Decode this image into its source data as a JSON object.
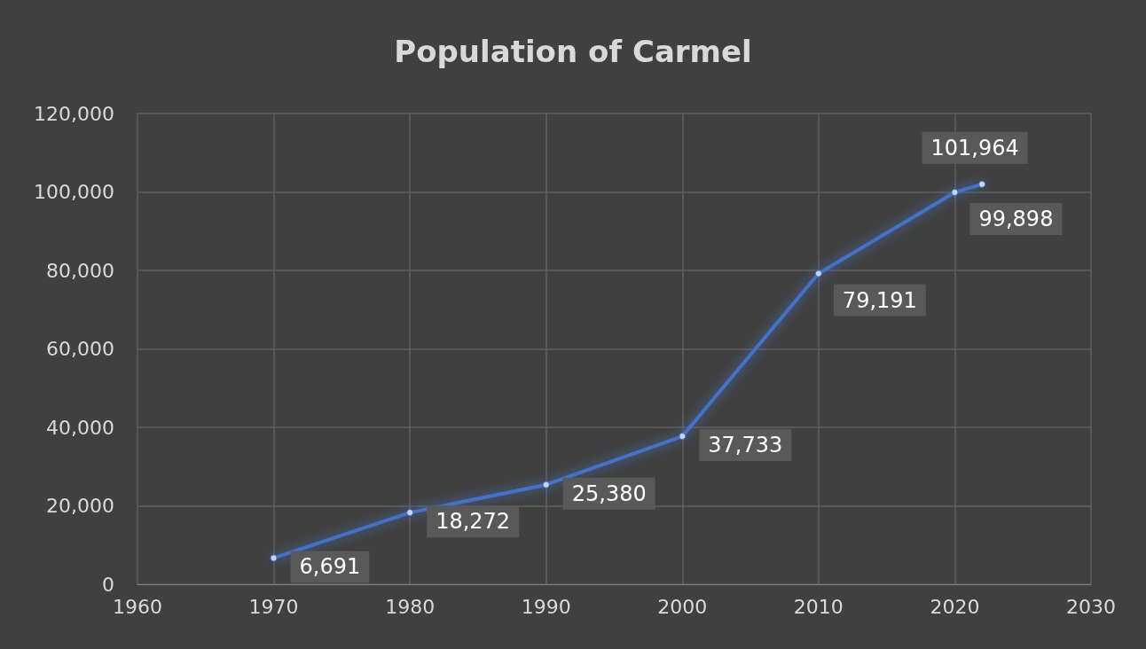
{
  "chart_data": {
    "type": "line",
    "title": "Population of Carmel",
    "x": [
      1970,
      1980,
      1990,
      2000,
      2010,
      2020,
      2022
    ],
    "series": [
      {
        "color": "#4472c4",
        "values": [
          6691,
          18272,
          25380,
          37733,
          79191,
          99898,
          101964
        ],
        "value_labels": [
          "6,691",
          "18,272",
          "25,380",
          "37,733",
          "79,191",
          "99,898",
          "101,964"
        ]
      }
    ],
    "xlim": [
      1960,
      2030
    ],
    "xticks": [
      1960,
      1970,
      1980,
      1990,
      2000,
      2010,
      2020,
      2030
    ],
    "ylim": [
      0,
      120000
    ],
    "yticks": [
      0,
      {
        "value": 20000,
        "label": "20,000"
      },
      {
        "value": 40000,
        "label": "40,000"
      },
      {
        "value": 60000,
        "label": "60,000"
      },
      {
        "value": 80000,
        "label": "80,000"
      },
      {
        "value": 100000,
        "label": "100,000"
      },
      {
        "value": 120000,
        "label": "120,000"
      }
    ],
    "grid": true,
    "marker": "circle",
    "line_style": "solid"
  }
}
